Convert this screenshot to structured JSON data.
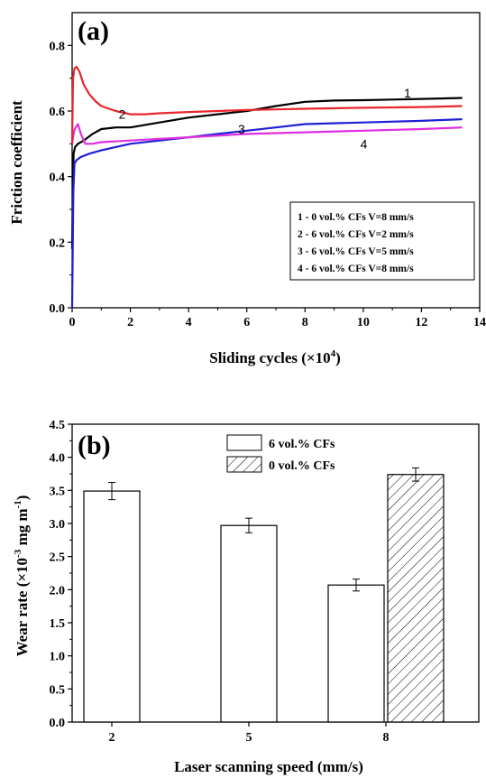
{
  "chart_data": [
    {
      "type": "line",
      "panel_label": "(a)",
      "xlabel": "Sliding cycles (×10",
      "xlabel_sup": "4",
      "xlabel_end": ")",
      "ylabel": "Friction coefficient",
      "xlim": [
        0,
        14
      ],
      "ylim": [
        0,
        0.9
      ],
      "xticks": [
        "0",
        "2",
        "4",
        "6",
        "8",
        "10",
        "12",
        "14"
      ],
      "yticks": [
        "0.0",
        "0.2",
        "0.4",
        "0.6",
        "0.8"
      ],
      "legend_position": "lower-right",
      "series": [
        {
          "curve_label": "1",
          "legend": "1 - 0 vol.% CFs  V=8 mm/s",
          "color": "#000000",
          "x": [
            0,
            0.05,
            0.1,
            0.2,
            0.4,
            0.7,
            1.0,
            1.5,
            2.0,
            3.0,
            4.0,
            5.0,
            6.0,
            7.0,
            8.0,
            9.0,
            10.0,
            11.0,
            12.0,
            13.4
          ],
          "y": [
            0.18,
            0.47,
            0.49,
            0.5,
            0.51,
            0.53,
            0.545,
            0.55,
            0.55,
            0.565,
            0.58,
            0.59,
            0.6,
            0.615,
            0.628,
            0.632,
            0.633,
            0.635,
            0.637,
            0.64
          ]
        },
        {
          "curve_label": "2",
          "legend": "2 - 6 vol.% CFs  V=2 mm/s",
          "color": "#e8262b",
          "x": [
            0,
            0.03,
            0.08,
            0.15,
            0.25,
            0.4,
            0.6,
            0.8,
            1.0,
            1.5,
            2.0,
            2.5,
            3.0,
            4.0,
            5.0,
            6.0,
            7.0,
            8.0,
            10.0,
            12.0,
            13.4
          ],
          "y": [
            0.5,
            0.7,
            0.73,
            0.735,
            0.72,
            0.68,
            0.65,
            0.63,
            0.615,
            0.6,
            0.59,
            0.59,
            0.593,
            0.597,
            0.6,
            0.603,
            0.605,
            0.607,
            0.61,
            0.612,
            0.615
          ]
        },
        {
          "curve_label": "3",
          "legend": "3 - 6 vol.% CFs  V=5 mm/s",
          "color": "#1f1fd6",
          "x": [
            0,
            0.04,
            0.08,
            0.15,
            0.3,
            0.6,
            1.0,
            2.0,
            3.0,
            4.0,
            5.0,
            6.0,
            7.0,
            8.0,
            10.0,
            12.0,
            13.4
          ],
          "y": [
            0.0,
            0.35,
            0.44,
            0.45,
            0.46,
            0.47,
            0.48,
            0.5,
            0.51,
            0.52,
            0.53,
            0.54,
            0.55,
            0.56,
            0.565,
            0.57,
            0.575
          ]
        },
        {
          "curve_label": "4",
          "legend": "4 - 6 vol.% CFs  V=8 mm/s",
          "color": "#e02ee0",
          "x": [
            0,
            0.03,
            0.07,
            0.12,
            0.2,
            0.3,
            0.45,
            0.7,
            1.0,
            2.0,
            3.0,
            4.0,
            5.0,
            6.0,
            8.0,
            10.0,
            12.0,
            13.4
          ],
          "y": [
            0.5,
            0.52,
            0.54,
            0.55,
            0.56,
            0.53,
            0.5,
            0.5,
            0.505,
            0.51,
            0.515,
            0.52,
            0.525,
            0.53,
            0.535,
            0.54,
            0.545,
            0.55
          ]
        }
      ]
    },
    {
      "type": "bar",
      "panel_label": "(b)",
      "xlabel": "Laser scanning speed (mm/s)",
      "ylabel": "Wear rate (×10",
      "ylabel_sup": "-3",
      "ylabel_mid": " mg m",
      "ylabel_sup2": "-1",
      "ylabel_end": ")",
      "ylim": [
        0,
        4.5
      ],
      "categories": [
        "2",
        "5",
        "8"
      ],
      "yticks": [
        "0.0",
        "0.5",
        "1.0",
        "1.5",
        "2.0",
        "2.5",
        "3.0",
        "3.5",
        "4.0",
        "4.5"
      ],
      "legend_position": "top-center",
      "series": [
        {
          "name": "6 vol.% CFs",
          "pattern": "none",
          "values": [
            3.49,
            2.97,
            2.07
          ],
          "errors": [
            0.13,
            0.11,
            0.09
          ]
        },
        {
          "name": "0 vol.% CFs",
          "pattern": "hatch",
          "values": [
            null,
            null,
            3.74
          ],
          "errors": [
            null,
            null,
            0.1
          ]
        }
      ]
    }
  ]
}
